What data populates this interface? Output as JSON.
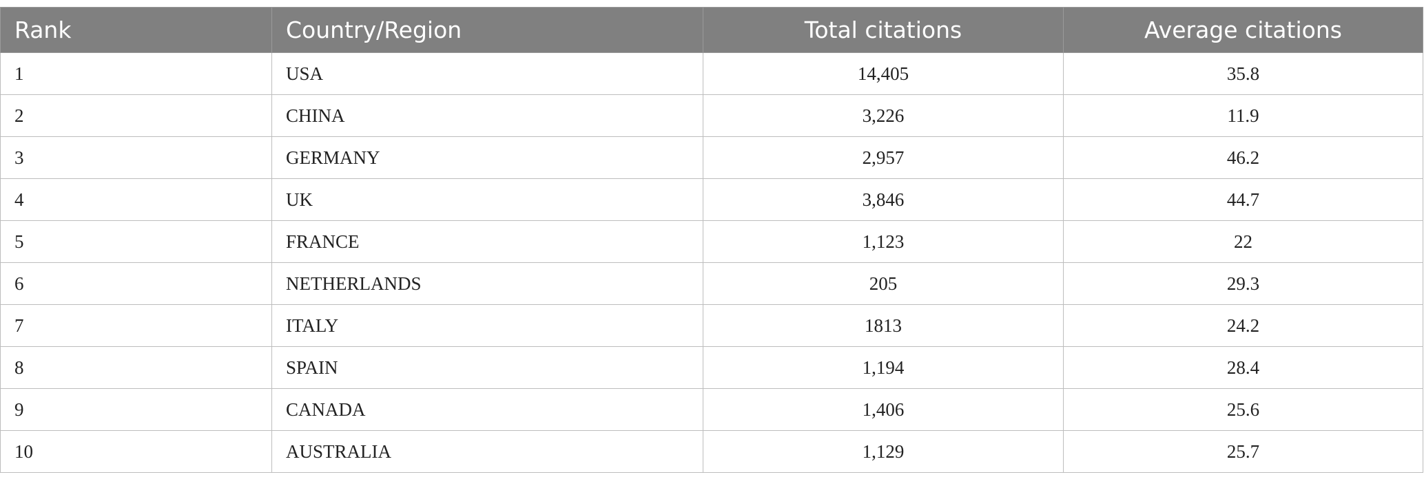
{
  "table": {
    "header": [
      "Rank",
      "Country/Region",
      "Total citations",
      "Average citations"
    ],
    "rows": [
      [
        "1",
        "USA",
        "14,405",
        "35.8"
      ],
      [
        "2",
        "CHINA",
        "3,226",
        "11.9"
      ],
      [
        "3",
        "GERMANY",
        "2,957",
        "46.2"
      ],
      [
        "4",
        "UK",
        "3,846",
        "44.7"
      ],
      [
        "5",
        "FRANCE",
        "1,123",
        "22"
      ],
      [
        "6",
        "NETHERLANDS",
        "205",
        "29.3"
      ],
      [
        "7",
        "ITALY",
        "1813",
        "24.2"
      ],
      [
        "8",
        "SPAIN",
        "1,194",
        "28.4"
      ],
      [
        "9",
        "CANADA",
        "1,406",
        "25.6"
      ],
      [
        "10",
        "AUSTRALIA",
        "1,129",
        "25.7"
      ]
    ]
  }
}
